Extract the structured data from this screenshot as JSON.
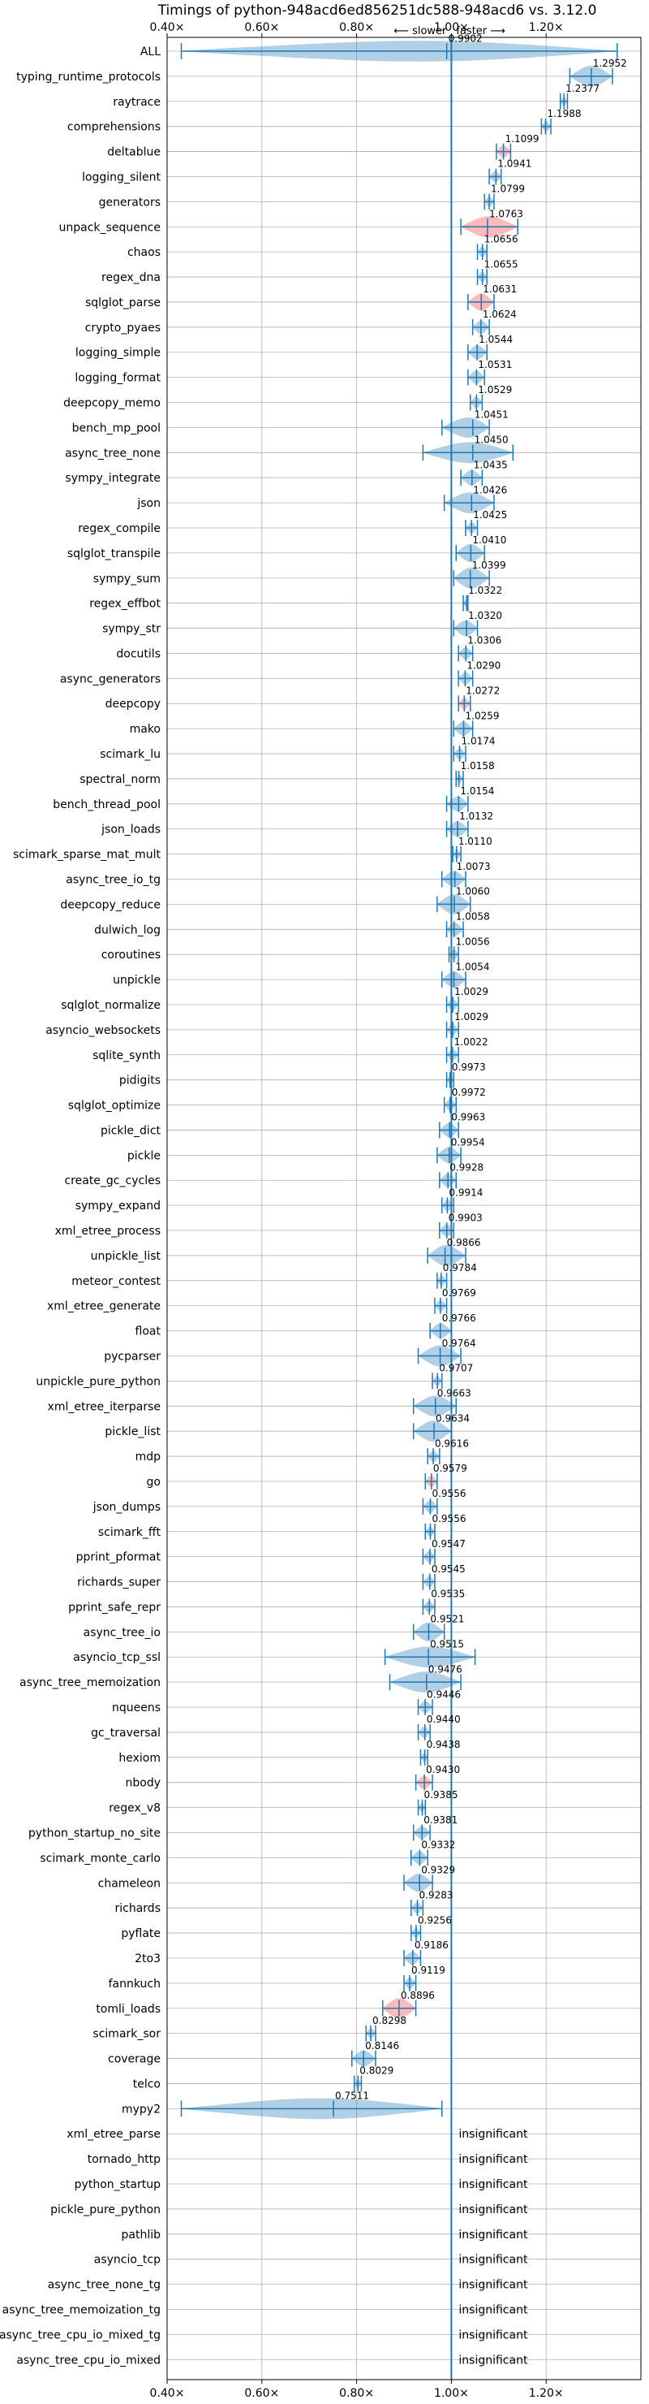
{
  "chart_data": {
    "type": "violin",
    "title": "Timings of python-948acd6ed856251dc588-948acd6 vs. 3.12.0",
    "xlim": [
      0.4,
      1.4
    ],
    "xticks": [
      0.4,
      0.6,
      0.8,
      1.0,
      1.2
    ],
    "xtick_labels": [
      "0.40×",
      "0.60×",
      "0.80×",
      "1.00×",
      "1.20×"
    ],
    "direction_labels": {
      "left": "⟵ slower",
      "right": "faster ⟶"
    },
    "reference_line": 1.0,
    "insignificant_label": "insignificant",
    "grid": true,
    "categories": [
      {
        "name": "ALL",
        "value": 0.9902,
        "lo": 0.43,
        "hi": 1.35,
        "label": "0.9902"
      },
      {
        "name": "typing_runtime_protocols",
        "value": 1.2952,
        "lo": 1.25,
        "hi": 1.34,
        "label": "1.2952"
      },
      {
        "name": "raytrace",
        "value": 1.2377,
        "lo": 1.23,
        "hi": 1.245,
        "label": "1.2377"
      },
      {
        "name": "comprehensions",
        "value": 1.1988,
        "lo": 1.19,
        "hi": 1.21,
        "label": "1.1988"
      },
      {
        "name": "deltablue",
        "value": 1.1099,
        "lo": 1.095,
        "hi": 1.125,
        "label": "1.1099",
        "highlight": true
      },
      {
        "name": "logging_silent",
        "value": 1.0941,
        "lo": 1.08,
        "hi": 1.105,
        "label": "1.0941"
      },
      {
        "name": "generators",
        "value": 1.0799,
        "lo": 1.07,
        "hi": 1.09,
        "label": "1.0799"
      },
      {
        "name": "unpack_sequence",
        "value": 1.0763,
        "lo": 1.02,
        "hi": 1.14,
        "label": "1.0763",
        "highlight": true
      },
      {
        "name": "chaos",
        "value": 1.0656,
        "lo": 1.055,
        "hi": 1.075,
        "label": "1.0656"
      },
      {
        "name": "regex_dna",
        "value": 1.0655,
        "lo": 1.055,
        "hi": 1.075,
        "label": "1.0655"
      },
      {
        "name": "sqlglot_parse",
        "value": 1.0631,
        "lo": 1.035,
        "hi": 1.09,
        "label": "1.0631",
        "highlight": true
      },
      {
        "name": "crypto_pyaes",
        "value": 1.0624,
        "lo": 1.045,
        "hi": 1.08,
        "label": "1.0624"
      },
      {
        "name": "logging_simple",
        "value": 1.0544,
        "lo": 1.035,
        "hi": 1.075,
        "label": "1.0544"
      },
      {
        "name": "logging_format",
        "value": 1.0531,
        "lo": 1.035,
        "hi": 1.07,
        "label": "1.0531"
      },
      {
        "name": "deepcopy_memo",
        "value": 1.0529,
        "lo": 1.04,
        "hi": 1.065,
        "label": "1.0529"
      },
      {
        "name": "bench_mp_pool",
        "value": 1.0451,
        "lo": 0.98,
        "hi": 1.08,
        "label": "1.0451"
      },
      {
        "name": "async_tree_none",
        "value": 1.045,
        "lo": 0.94,
        "hi": 1.13,
        "label": "1.0450"
      },
      {
        "name": "sympy_integrate",
        "value": 1.0435,
        "lo": 1.02,
        "hi": 1.065,
        "label": "1.0435"
      },
      {
        "name": "json",
        "value": 1.0426,
        "lo": 0.985,
        "hi": 1.09,
        "label": "1.0426"
      },
      {
        "name": "regex_compile",
        "value": 1.0425,
        "lo": 1.03,
        "hi": 1.055,
        "label": "1.0425"
      },
      {
        "name": "sqlglot_transpile",
        "value": 1.041,
        "lo": 1.01,
        "hi": 1.07,
        "label": "1.0410"
      },
      {
        "name": "sympy_sum",
        "value": 1.0399,
        "lo": 1.005,
        "hi": 1.08,
        "label": "1.0399"
      },
      {
        "name": "regex_effbot",
        "value": 1.0322,
        "lo": 1.025,
        "hi": 1.035,
        "label": "1.0322"
      },
      {
        "name": "sympy_str",
        "value": 1.032,
        "lo": 1.005,
        "hi": 1.055,
        "label": "1.0320"
      },
      {
        "name": "docutils",
        "value": 1.0306,
        "lo": 1.015,
        "hi": 1.045,
        "label": "1.0306"
      },
      {
        "name": "async_generators",
        "value": 1.029,
        "lo": 1.015,
        "hi": 1.045,
        "label": "1.0290"
      },
      {
        "name": "deepcopy",
        "value": 1.0272,
        "lo": 1.015,
        "hi": 1.04,
        "label": "1.0272",
        "highlight": true
      },
      {
        "name": "mako",
        "value": 1.0259,
        "lo": 1.005,
        "hi": 1.045,
        "label": "1.0259"
      },
      {
        "name": "scimark_lu",
        "value": 1.0174,
        "lo": 1.005,
        "hi": 1.03,
        "label": "1.0174"
      },
      {
        "name": "spectral_norm",
        "value": 1.0158,
        "lo": 1.01,
        "hi": 1.025,
        "label": "1.0158"
      },
      {
        "name": "bench_thread_pool",
        "value": 1.0154,
        "lo": 0.99,
        "hi": 1.035,
        "label": "1.0154"
      },
      {
        "name": "json_loads",
        "value": 1.0132,
        "lo": 0.99,
        "hi": 1.035,
        "label": "1.0132"
      },
      {
        "name": "scimark_sparse_mat_mult",
        "value": 1.011,
        "lo": 1.003,
        "hi": 1.02,
        "label": "1.0110"
      },
      {
        "name": "async_tree_io_tg",
        "value": 1.0073,
        "lo": 0.98,
        "hi": 1.03,
        "label": "1.0073"
      },
      {
        "name": "deepcopy_reduce",
        "value": 1.006,
        "lo": 0.97,
        "hi": 1.04,
        "label": "1.0060"
      },
      {
        "name": "dulwich_log",
        "value": 1.0058,
        "lo": 0.99,
        "hi": 1.025,
        "label": "1.0058"
      },
      {
        "name": "coroutines",
        "value": 1.0056,
        "lo": 0.995,
        "hi": 1.015,
        "label": "1.0056"
      },
      {
        "name": "unpickle",
        "value": 1.0054,
        "lo": 0.98,
        "hi": 1.03,
        "label": "1.0054"
      },
      {
        "name": "sqlglot_normalize",
        "value": 1.0029,
        "lo": 0.99,
        "hi": 1.015,
        "label": "1.0029"
      },
      {
        "name": "asyncio_websockets",
        "value": 1.0029,
        "lo": 0.99,
        "hi": 1.015,
        "label": "1.0029"
      },
      {
        "name": "sqlite_synth",
        "value": 1.0022,
        "lo": 0.99,
        "hi": 1.015,
        "label": "1.0022"
      },
      {
        "name": "pidigits",
        "value": 0.9973,
        "lo": 0.99,
        "hi": 1.005,
        "label": "0.9973"
      },
      {
        "name": "sqlglot_optimize",
        "value": 0.9972,
        "lo": 0.985,
        "hi": 1.01,
        "label": "0.9972"
      },
      {
        "name": "pickle_dict",
        "value": 0.9963,
        "lo": 0.975,
        "hi": 1.015,
        "label": "0.9963"
      },
      {
        "name": "pickle",
        "value": 0.9954,
        "lo": 0.97,
        "hi": 1.02,
        "label": "0.9954"
      },
      {
        "name": "create_gc_cycles",
        "value": 0.9928,
        "lo": 0.975,
        "hi": 1.01,
        "label": "0.9928"
      },
      {
        "name": "sympy_expand",
        "value": 0.9914,
        "lo": 0.98,
        "hi": 1.005,
        "label": "0.9914"
      },
      {
        "name": "xml_etree_process",
        "value": 0.9903,
        "lo": 0.975,
        "hi": 1.005,
        "label": "0.9903"
      },
      {
        "name": "unpickle_list",
        "value": 0.9866,
        "lo": 0.95,
        "hi": 1.03,
        "label": "0.9866"
      },
      {
        "name": "meteor_contest",
        "value": 0.9784,
        "lo": 0.97,
        "hi": 0.99,
        "label": "0.9784"
      },
      {
        "name": "xml_etree_generate",
        "value": 0.9769,
        "lo": 0.965,
        "hi": 0.99,
        "label": "0.9769"
      },
      {
        "name": "float",
        "value": 0.9766,
        "lo": 0.955,
        "hi": 1.0,
        "label": "0.9766"
      },
      {
        "name": "pycparser",
        "value": 0.9764,
        "lo": 0.93,
        "hi": 1.02,
        "label": "0.9764"
      },
      {
        "name": "unpickle_pure_python",
        "value": 0.9707,
        "lo": 0.96,
        "hi": 0.98,
        "label": "0.9707"
      },
      {
        "name": "xml_etree_iterparse",
        "value": 0.9663,
        "lo": 0.92,
        "hi": 1.01,
        "label": "0.9663"
      },
      {
        "name": "pickle_list",
        "value": 0.9634,
        "lo": 0.92,
        "hi": 1.0,
        "label": "0.9634"
      },
      {
        "name": "mdp",
        "value": 0.9616,
        "lo": 0.95,
        "hi": 0.975,
        "label": "0.9616"
      },
      {
        "name": "go",
        "value": 0.9579,
        "lo": 0.945,
        "hi": 0.97,
        "label": "0.9579",
        "highlight": true
      },
      {
        "name": "json_dumps",
        "value": 0.9556,
        "lo": 0.94,
        "hi": 0.97,
        "label": "0.9556"
      },
      {
        "name": "scimark_fft",
        "value": 0.9556,
        "lo": 0.945,
        "hi": 0.965,
        "label": "0.9556"
      },
      {
        "name": "pprint_pformat",
        "value": 0.9547,
        "lo": 0.94,
        "hi": 0.965,
        "label": "0.9547"
      },
      {
        "name": "richards_super",
        "value": 0.9545,
        "lo": 0.94,
        "hi": 0.965,
        "label": "0.9545"
      },
      {
        "name": "pprint_safe_repr",
        "value": 0.9535,
        "lo": 0.94,
        "hi": 0.965,
        "label": "0.9535"
      },
      {
        "name": "async_tree_io",
        "value": 0.9521,
        "lo": 0.92,
        "hi": 0.985,
        "label": "0.9521"
      },
      {
        "name": "asyncio_tcp_ssl",
        "value": 0.9515,
        "lo": 0.86,
        "hi": 1.05,
        "label": "0.9515"
      },
      {
        "name": "async_tree_memoization",
        "value": 0.9476,
        "lo": 0.87,
        "hi": 1.02,
        "label": "0.9476"
      },
      {
        "name": "nqueens",
        "value": 0.9446,
        "lo": 0.93,
        "hi": 0.96,
        "label": "0.9446"
      },
      {
        "name": "gc_traversal",
        "value": 0.944,
        "lo": 0.93,
        "hi": 0.955,
        "label": "0.9440"
      },
      {
        "name": "hexiom",
        "value": 0.9438,
        "lo": 0.935,
        "hi": 0.95,
        "label": "0.9438"
      },
      {
        "name": "nbody",
        "value": 0.943,
        "lo": 0.925,
        "hi": 0.96,
        "label": "0.9430",
        "highlight": true
      },
      {
        "name": "regex_v8",
        "value": 0.9385,
        "lo": 0.93,
        "hi": 0.945,
        "label": "0.9385"
      },
      {
        "name": "python_startup_no_site",
        "value": 0.9381,
        "lo": 0.92,
        "hi": 0.955,
        "label": "0.9381"
      },
      {
        "name": "scimark_monte_carlo",
        "value": 0.9332,
        "lo": 0.915,
        "hi": 0.95,
        "label": "0.9332"
      },
      {
        "name": "chameleon",
        "value": 0.9329,
        "lo": 0.9,
        "hi": 0.96,
        "label": "0.9329"
      },
      {
        "name": "richards",
        "value": 0.9283,
        "lo": 0.915,
        "hi": 0.94,
        "label": "0.9283"
      },
      {
        "name": "pyflate",
        "value": 0.9256,
        "lo": 0.915,
        "hi": 0.935,
        "label": "0.9256"
      },
      {
        "name": "2to3",
        "value": 0.9186,
        "lo": 0.9,
        "hi": 0.935,
        "label": "0.9186"
      },
      {
        "name": "fannkuch",
        "value": 0.9119,
        "lo": 0.9,
        "hi": 0.925,
        "label": "0.9119"
      },
      {
        "name": "tomli_loads",
        "value": 0.8896,
        "lo": 0.855,
        "hi": 0.925,
        "label": "0.8896",
        "highlight": true
      },
      {
        "name": "scimark_sor",
        "value": 0.8298,
        "lo": 0.82,
        "hi": 0.84,
        "label": "0.8298"
      },
      {
        "name": "coverage",
        "value": 0.8146,
        "lo": 0.79,
        "hi": 0.84,
        "label": "0.8146"
      },
      {
        "name": "telco",
        "value": 0.8029,
        "lo": 0.795,
        "hi": 0.81,
        "label": "0.8029"
      },
      {
        "name": "mypy2",
        "value": 0.7511,
        "lo": 0.43,
        "hi": 0.98,
        "label": "0.7511"
      },
      {
        "name": "xml_etree_parse",
        "insignificant": true
      },
      {
        "name": "tornado_http",
        "insignificant": true
      },
      {
        "name": "python_startup",
        "insignificant": true
      },
      {
        "name": "pickle_pure_python",
        "insignificant": true
      },
      {
        "name": "pathlib",
        "insignificant": true
      },
      {
        "name": "asyncio_tcp",
        "insignificant": true
      },
      {
        "name": "async_tree_none_tg",
        "insignificant": true
      },
      {
        "name": "async_tree_memoization_tg",
        "insignificant": true
      },
      {
        "name": "async_tree_cpu_io_mixed_tg",
        "insignificant": true
      },
      {
        "name": "async_tree_cpu_io_mixed",
        "insignificant": true
      }
    ]
  },
  "colors": {
    "violin": "#1f77b4",
    "highlight": "#ff8080",
    "grid": "#b0b0b0",
    "axis": "#000000"
  }
}
